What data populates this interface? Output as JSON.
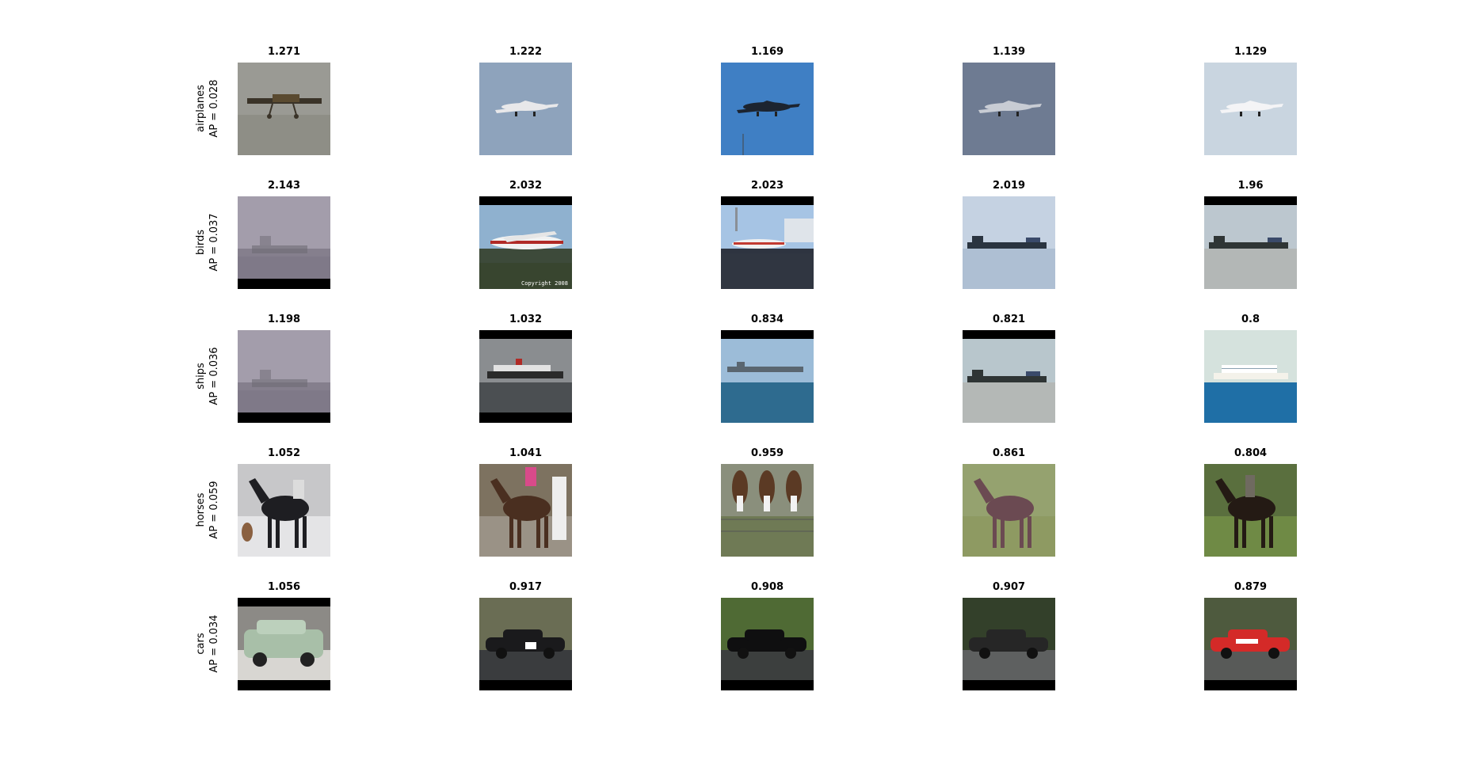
{
  "rows": [
    {
      "category": "airplanes",
      "ap_text": "AP = 0.028",
      "cells": [
        {
          "score": "1.271",
          "subject": "propeller-plane",
          "sky": "#9a9a94",
          "ground": "#8e8e86",
          "band_top": false,
          "band_bottom": false,
          "fg": "#3a3328"
        },
        {
          "score": "1.222",
          "subject": "jet-airliner",
          "sky": "#8ea3bc",
          "ground": "#8ea3bc",
          "band_top": false,
          "band_bottom": false,
          "fg": "#e8e8ea"
        },
        {
          "score": "1.169",
          "subject": "cargo-jet",
          "sky": "#3f7fc4",
          "ground": "#3f7fc4",
          "band_top": false,
          "band_bottom": false,
          "fg": "#1c2430"
        },
        {
          "score": "1.139",
          "subject": "jet-airliner",
          "sky": "#6e7b92",
          "ground": "#6e7b92",
          "band_top": false,
          "band_bottom": false,
          "fg": "#c8ccd4"
        },
        {
          "score": "1.129",
          "subject": "jet-airliner",
          "sky": "#c9d5e0",
          "ground": "#c9d5e0",
          "band_top": false,
          "band_bottom": false,
          "fg": "#f4f4f6"
        }
      ]
    },
    {
      "category": "birds",
      "ap_text": "AP = 0.037",
      "cells": [
        {
          "score": "2.143",
          "subject": "foggy-ship",
          "sky": "#a39dab",
          "ground": "#857f8d",
          "band_top": false,
          "band_bottom": true,
          "fg": "#6e6a74"
        },
        {
          "score": "2.032",
          "subject": "sim-airliner",
          "sky": "#8fb1cf",
          "ground": "#3d4a3a",
          "band_top": true,
          "band_bottom": false,
          "fg": "#b02a26",
          "caption": "Copyright 2008"
        },
        {
          "score": "2.023",
          "subject": "airport-plane",
          "sky": "#a6c4e4",
          "ground": "#2e3440",
          "band_top": true,
          "band_bottom": false,
          "fg": "#f0f0f0"
        },
        {
          "score": "2.019",
          "subject": "cargo-ship",
          "sky": "#c5d2e2",
          "ground": "#aebfd3",
          "band_top": false,
          "band_bottom": false,
          "fg": "#2a3440"
        },
        {
          "score": "1.96",
          "subject": "cargo-ship",
          "sky": "#bcc7cf",
          "ground": "#b3b7b6",
          "band_top": true,
          "band_bottom": false,
          "fg": "#2f3535"
        }
      ]
    },
    {
      "category": "ships",
      "ap_text": "AP = 0.036",
      "cells": [
        {
          "score": "1.198",
          "subject": "foggy-ship",
          "sky": "#a39dab",
          "ground": "#857f8d",
          "band_top": false,
          "band_bottom": true,
          "fg": "#6e6a74"
        },
        {
          "score": "1.032",
          "subject": "ocean-liner",
          "sky": "#8a8d90",
          "ground": "#4b4f52",
          "band_top": true,
          "band_bottom": true,
          "fg": "#2a2a2a"
        },
        {
          "score": "0.834",
          "subject": "carrier-ship",
          "sky": "#9cbcd8",
          "ground": "#2e6b8f",
          "band_top": true,
          "band_bottom": false,
          "fg": "#5a6670"
        },
        {
          "score": "0.821",
          "subject": "cargo-ship",
          "sky": "#b8c6cc",
          "ground": "#b4b8b6",
          "band_top": true,
          "band_bottom": false,
          "fg": "#2f3535"
        },
        {
          "score": "0.8",
          "subject": "cruise-ship",
          "sky": "#d5e2dd",
          "ground": "#1f6fa6",
          "band_top": false,
          "band_bottom": false,
          "fg": "#f4f2ea"
        }
      ]
    },
    {
      "category": "horses",
      "ap_text": "AP = 0.059",
      "cells": [
        {
          "score": "1.052",
          "subject": "dark-horse-dog",
          "sky": "#c7c7c9",
          "ground": "#e4e4e6",
          "band_top": false,
          "band_bottom": false,
          "fg": "#1e1e22"
        },
        {
          "score": "1.041",
          "subject": "race-horse",
          "sky": "#7d7260",
          "ground": "#9a9286",
          "band_top": false,
          "band_bottom": false,
          "fg": "#4a2f20"
        },
        {
          "score": "0.959",
          "subject": "three-horses",
          "sky": "#8a8f7c",
          "ground": "#6f7a55",
          "band_top": false,
          "band_bottom": false,
          "fg": "#5b3a24"
        },
        {
          "score": "0.861",
          "subject": "brown-horse",
          "sky": "#95a26f",
          "ground": "#8e9a62",
          "band_top": false,
          "band_bottom": false,
          "fg": "#6b4a52"
        },
        {
          "score": "0.804",
          "subject": "rider-horse",
          "sky": "#5a6f3e",
          "ground": "#6f8a45",
          "band_top": false,
          "band_bottom": false,
          "fg": "#241a14"
        }
      ]
    },
    {
      "category": "cars",
      "ap_text": "AP = 0.034",
      "cells": [
        {
          "score": "1.056",
          "subject": "green-hatchback",
          "sky": "#8c8a86",
          "ground": "#d8d6d2",
          "band_top": true,
          "band_bottom": true,
          "fg": "#a8bfa8"
        },
        {
          "score": "0.917",
          "subject": "rally-car",
          "sky": "#6a6d54",
          "ground": "#3a3c3e",
          "band_top": false,
          "band_bottom": true,
          "fg": "#1a1a1c"
        },
        {
          "score": "0.908",
          "subject": "black-sedan",
          "sky": "#4f6a34",
          "ground": "#3c3f3e",
          "band_top": false,
          "band_bottom": true,
          "fg": "#0f0f10"
        },
        {
          "score": "0.907",
          "subject": "race-car",
          "sky": "#33402a",
          "ground": "#5e6060",
          "band_top": false,
          "band_bottom": true,
          "fg": "#262626"
        },
        {
          "score": "0.879",
          "subject": "red-race-car",
          "sky": "#4e5a3e",
          "ground": "#585a58",
          "band_top": false,
          "band_bottom": true,
          "fg": "#d42a28"
        }
      ]
    }
  ]
}
